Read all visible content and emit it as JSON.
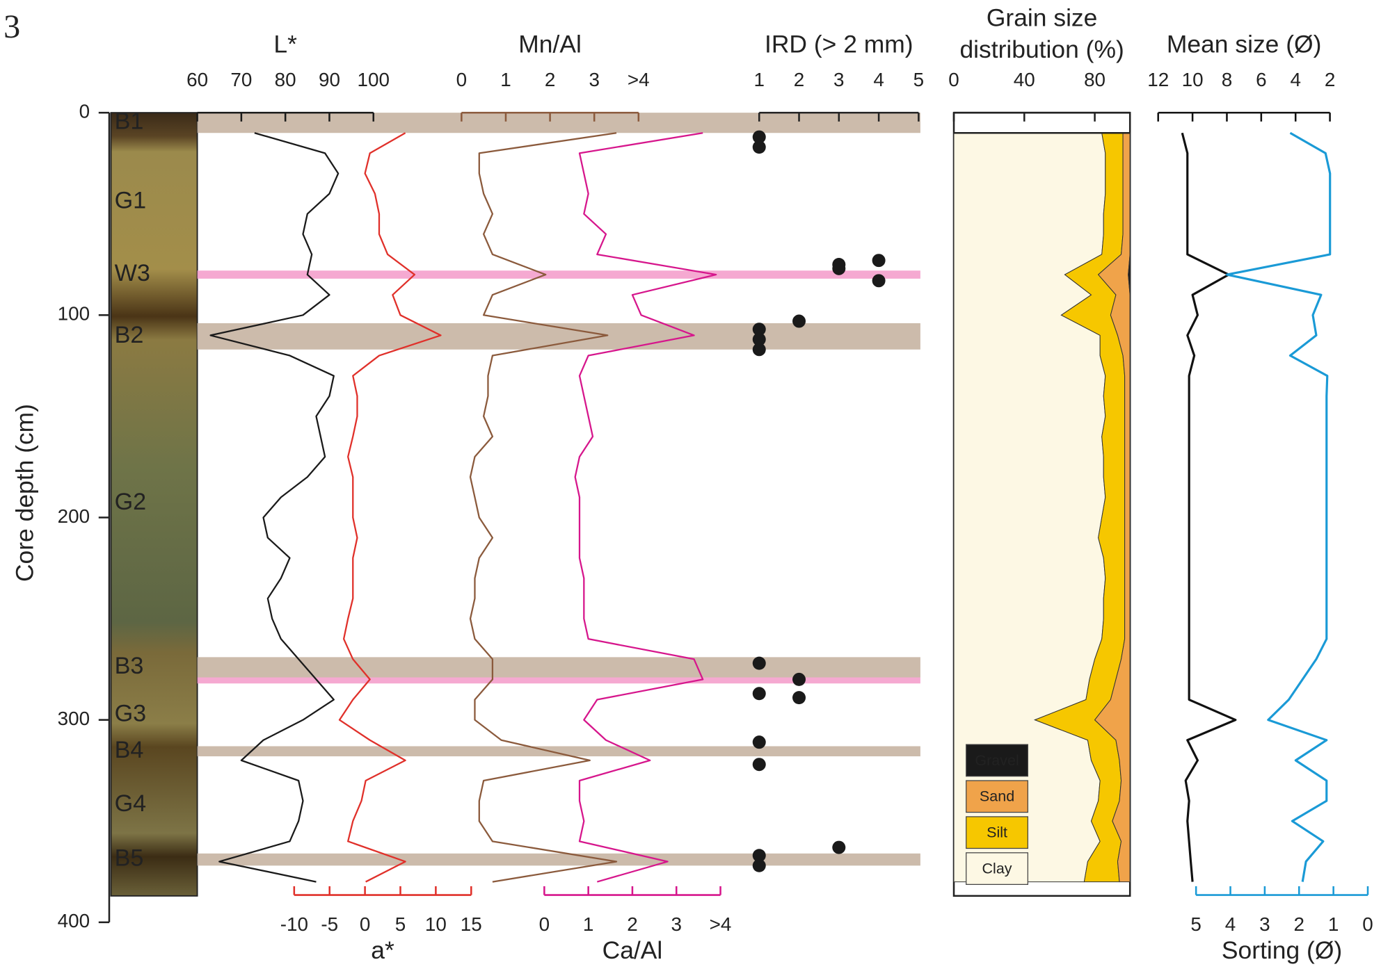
{
  "figure_label": "3",
  "depth_axis": {
    "label": "Core depth (cm)",
    "lim": [
      0,
      400
    ],
    "ticks": [
      0,
      100,
      200,
      300,
      400
    ]
  },
  "sample_depths": [
    10,
    20,
    30,
    40,
    50,
    60,
    70,
    80,
    90,
    100,
    110,
    120,
    130,
    140,
    150,
    160,
    170,
    180,
    190,
    200,
    210,
    220,
    230,
    240,
    250,
    260,
    270,
    280,
    290,
    300,
    310,
    320,
    330,
    340,
    350,
    360,
    370,
    380
  ],
  "units": [
    {
      "label": "B1",
      "top": 0,
      "bottom": 10,
      "color": "#c7b4a2",
      "label_color": "#ffffff"
    },
    {
      "label": "G1",
      "top": 10,
      "bottom": 78,
      "color": null,
      "label_color": "#ffffff"
    },
    {
      "label": "W3",
      "top": 78,
      "bottom": 82,
      "color": "#f4a0cc",
      "label_color": "#e0177f"
    },
    {
      "label": "B2",
      "top": 104,
      "bottom": 117,
      "color": "#c7b4a2",
      "label_color": "#ffffff"
    },
    {
      "label": "G2",
      "top": 117,
      "bottom": 269,
      "color": null,
      "label_color": "#ffffff"
    },
    {
      "label": "B3",
      "top": 269,
      "bottom": 279,
      "color": "#c7b4a2",
      "label_color": "#ffffff"
    },
    {
      "label": "G3",
      "top": 282,
      "bottom": 313,
      "color": null,
      "label_color": "#ffffff"
    },
    {
      "label": "B4",
      "top": 313,
      "bottom": 318,
      "color": "#c7b4a2",
      "label_color": "#ffffff"
    },
    {
      "label": "G4",
      "top": 318,
      "bottom": 366,
      "color": null,
      "label_color": "#ffffff"
    },
    {
      "label": "B5",
      "top": 366,
      "bottom": 372,
      "color": "#c7b4a2",
      "label_color": "#ffffff"
    }
  ],
  "extra_bands": [
    {
      "top": 279,
      "bottom": 282,
      "color": "#f4a0cc"
    }
  ],
  "chart_data": [
    {
      "type": "line",
      "title": "L*",
      "color": "#1a1a1a",
      "xlim": [
        60,
        100
      ],
      "xticks": [
        60,
        70,
        80,
        90,
        100
      ],
      "values": [
        73,
        89,
        92,
        90,
        85,
        84,
        86,
        85,
        90,
        84,
        63,
        81,
        91,
        90,
        87,
        88,
        89,
        85,
        79,
        75,
        76,
        81,
        79,
        76,
        77,
        79,
        83,
        87,
        91,
        84,
        75,
        70,
        83,
        84,
        83,
        81,
        65,
        87
      ]
    },
    {
      "type": "line",
      "title": "a*",
      "color": "#e0302a",
      "xlim": [
        -10,
        15
      ],
      "xticks": [
        -10,
        -5,
        0,
        5,
        10,
        15
      ],
      "values": [
        5.7,
        0.7,
        0,
        1.4,
        2,
        2,
        3.2,
        7,
        3.9,
        5,
        10.7,
        2,
        -1.7,
        -1.1,
        -1.1,
        -1.7,
        -2.4,
        -1.7,
        -1.7,
        -1.7,
        -1.1,
        -1.7,
        -1.7,
        -1.7,
        -2.4,
        -3,
        -1.7,
        0.7,
        -1.7,
        -3.6,
        0.7,
        5.7,
        0.1,
        -0.5,
        -1.7,
        -2.4,
        5.7,
        0.1
      ]
    },
    {
      "type": "line",
      "title": "Mn/Al",
      "color": "#8b5a3c",
      "xlim": [
        0,
        4
      ],
      "xticks": [
        0,
        1,
        2,
        3,
        {
          "value": 4,
          "label": ">4"
        }
      ],
      "values": [
        3.5,
        0.4,
        0.4,
        0.5,
        0.7,
        0.5,
        0.7,
        1.9,
        0.7,
        0.5,
        3.3,
        0.7,
        0.6,
        0.6,
        0.5,
        0.7,
        0.3,
        0.2,
        0.3,
        0.4,
        0.7,
        0.4,
        0.3,
        0.3,
        0.2,
        0.3,
        0.7,
        0.7,
        0.3,
        0.3,
        0.9,
        2.9,
        0.5,
        0.4,
        0.4,
        0.7,
        3.5,
        0.7
      ]
    },
    {
      "type": "line",
      "title": "Ca/Al",
      "color": "#d6168c",
      "xlim": [
        0,
        4
      ],
      "xticks": [
        0,
        1,
        2,
        3,
        {
          "value": 4,
          "label": ">4"
        }
      ],
      "values": [
        3.6,
        0.8,
        0.9,
        1.0,
        0.9,
        1.4,
        1.2,
        3.9,
        2.0,
        2.2,
        3.4,
        1.0,
        0.8,
        0.9,
        1.0,
        1.1,
        0.8,
        0.7,
        0.8,
        0.8,
        0.8,
        0.8,
        0.9,
        0.9,
        0.9,
        1.0,
        3.4,
        3.6,
        1.2,
        0.9,
        1.4,
        2.4,
        0.8,
        0.8,
        0.9,
        0.8,
        2.8,
        1.2
      ]
    },
    {
      "type": "scatter",
      "title": "IRD (> 2 mm)",
      "color": "#1a1a1a",
      "xlim": [
        1,
        5
      ],
      "xticks": [
        1,
        2,
        3,
        4,
        5
      ],
      "depths": [
        12,
        17,
        73,
        75,
        77,
        83,
        103,
        107,
        112,
        117,
        272,
        280,
        287,
        289,
        311,
        322,
        363,
        367,
        372
      ],
      "values": [
        1,
        1,
        4,
        3,
        3,
        4,
        2,
        1,
        1,
        1,
        1,
        2,
        1,
        2,
        1,
        1,
        3,
        1,
        1
      ]
    },
    {
      "type": "stacked_area",
      "title": [
        "Grain size",
        "distribution (%)"
      ],
      "xlim": [
        0,
        100
      ],
      "xticks": [
        0,
        40,
        80
      ],
      "legend": "bottom-left",
      "series": [
        {
          "name": "Clay",
          "color": "#fdf8e4",
          "values": [
            84,
            86,
            86,
            86,
            85,
            85,
            84,
            63,
            78,
            61,
            83,
            83,
            86,
            85,
            86,
            84,
            85,
            85,
            86,
            84,
            82,
            85,
            86,
            85,
            85,
            84,
            80,
            77,
            75,
            46,
            76,
            78,
            83,
            82,
            78,
            83,
            76,
            74
          ]
        },
        {
          "name": "Silt",
          "color": "#f6c700",
          "values": [
            12,
            10,
            10,
            10,
            11,
            11,
            11,
            19,
            14,
            28,
            10,
            13,
            11,
            12,
            11,
            13,
            12,
            12,
            11,
            13,
            15,
            12,
            11,
            12,
            12,
            13,
            15,
            15,
            14,
            34,
            16,
            16,
            12,
            12,
            12,
            12,
            17,
            20
          ]
        },
        {
          "name": "Sand",
          "color": "#f0a34a",
          "values": [
            4,
            4,
            4,
            4,
            4,
            4,
            5,
            17,
            8,
            11,
            7,
            4,
            3,
            3,
            3,
            3,
            3,
            3,
            3,
            3,
            3,
            3,
            3,
            3,
            3,
            3,
            5,
            8,
            11,
            20,
            8,
            6,
            5,
            6,
            10,
            5,
            7,
            6
          ]
        },
        {
          "name": "Gravel",
          "color": "#1a1a1a",
          "values": [
            0,
            0,
            0,
            0,
            0,
            0,
            0,
            1,
            0,
            0,
            0,
            0,
            0,
            0,
            0,
            0,
            0,
            0,
            0,
            0,
            0,
            0,
            0,
            0,
            0,
            0,
            0,
            0,
            0,
            0,
            0,
            0,
            0,
            0,
            0,
            0,
            0,
            0
          ]
        }
      ]
    },
    {
      "type": "line",
      "xlim": [
        12,
        2
      ],
      "xticks": [
        12,
        10,
        8,
        6,
        4,
        2
      ],
      "x2lim": [
        5,
        0
      ],
      "x2ticks": [
        5,
        4,
        3,
        2,
        1,
        0
      ],
      "series": [
        {
          "name": "Mean size (Ø)",
          "color": "#111111",
          "axis": "x",
          "values": [
            10.6,
            10.3,
            10.3,
            10.3,
            10.3,
            10.3,
            10.3,
            7.9,
            10.0,
            9.7,
            10.3,
            9.9,
            10.2,
            10.2,
            10.2,
            10.2,
            10.2,
            10.2,
            10.2,
            10.2,
            10.2,
            10.2,
            10.2,
            10.2,
            10.2,
            10.2,
            10.2,
            10.2,
            10.2,
            7.5,
            10.3,
            9.7,
            10.4,
            10.2,
            10.3,
            10.2,
            10.1,
            10.0
          ]
        },
        {
          "name": "Sorting (Ø)",
          "color": "#1a9ad6",
          "axis": "x2",
          "values": [
            2.26,
            1.23,
            1.1,
            1.1,
            1.1,
            1.1,
            1.1,
            4.1,
            1.36,
            1.6,
            1.5,
            2.26,
            1.18,
            1.2,
            1.2,
            1.2,
            1.2,
            1.2,
            1.2,
            1.2,
            1.2,
            1.2,
            1.2,
            1.2,
            1.2,
            1.2,
            1.5,
            1.9,
            2.3,
            2.9,
            1.2,
            2.1,
            1.2,
            1.2,
            2.2,
            1.3,
            1.8,
            1.9
          ]
        }
      ]
    }
  ]
}
